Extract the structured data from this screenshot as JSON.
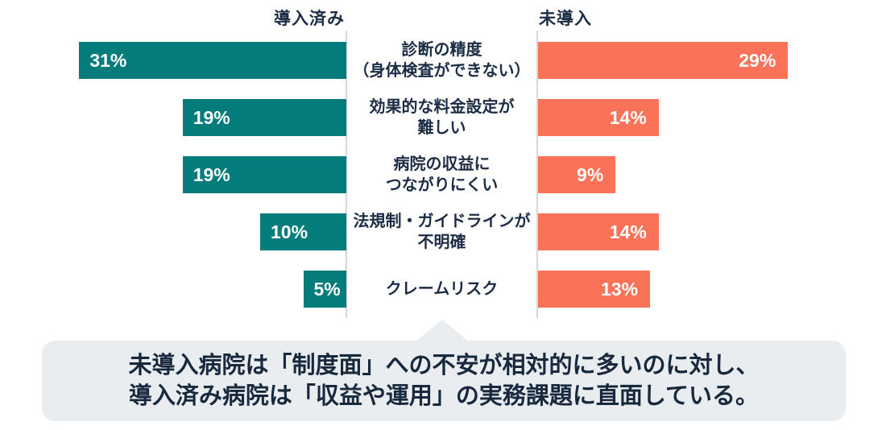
{
  "colors": {
    "implemented_bar": "#047c7c",
    "not_implemented_bar": "#fa7258",
    "text_dark": "#1b2c44",
    "callout_bg": "#eaedef",
    "axis_line": "#d5d9dc",
    "bar_value_text": "#ffffff",
    "background": "#ffffff"
  },
  "chart_data": {
    "type": "bar",
    "variant": "diverging-horizontal",
    "value_suffix": "%",
    "series": [
      {
        "name": "導入済み",
        "side": "left",
        "color": "#047c7c",
        "values": [
          31,
          19,
          19,
          10,
          5
        ]
      },
      {
        "name": "未導入",
        "side": "right",
        "color": "#fa7258",
        "values": [
          29,
          14,
          9,
          14,
          13
        ]
      }
    ],
    "categories": [
      "診断の精度\n（身体検査ができない）",
      "効果的な料金設定が\n難しい",
      "病院の収益に\nつながりにくい",
      "法規制・ガイドラインが\n不明確",
      "クレームリスク"
    ],
    "value_labels": {
      "left": [
        "31%",
        "19%",
        "19%",
        "10%",
        "5%"
      ],
      "right": [
        "29%",
        "14%",
        "9%",
        "14%",
        "13%"
      ]
    },
    "legend_position": "top",
    "grid": false,
    "xlim_each_side": [
      0,
      32
    ]
  },
  "callout": {
    "lines": [
      "未導入病院は「制度面」への不安が相対的に多いのに対し、",
      "導入済み病院は「収益や運用」の実務課題に直面している。"
    ]
  }
}
